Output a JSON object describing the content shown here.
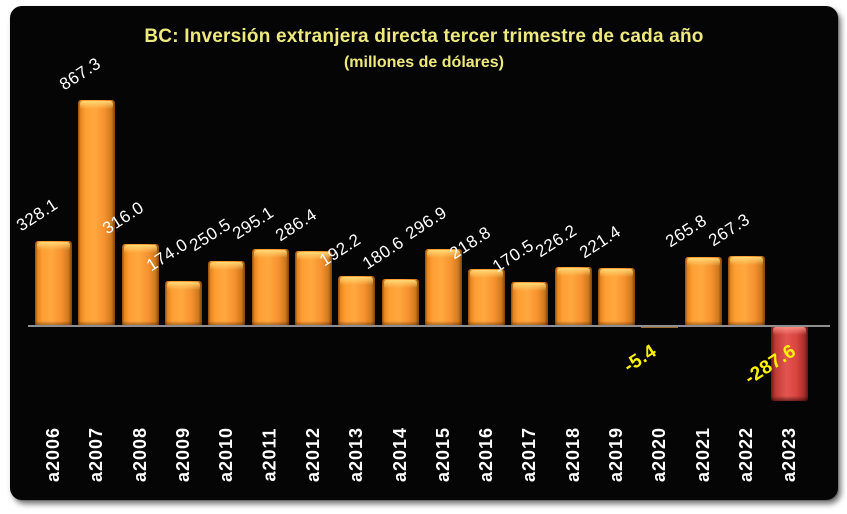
{
  "theme": {
    "page_bg": "#FFFFFF",
    "panel_bg": "#050505",
    "title_color": "#EEE97D",
    "value_label_color": "#FFFFFF",
    "negative_label_color": "#FFF100",
    "axis_line_color": "#8F8F8F",
    "orange_bar": "#F6912F",
    "red_bar": "#D8423F"
  },
  "chart_data": {
    "type": "bar",
    "title": "BC: Inversión extranjera directa tercer trimestre de cada año",
    "subtitle": "(millones de dólares)",
    "xlabel": "",
    "ylabel": "",
    "categories": [
      "a2006",
      "a2007",
      "a2008",
      "a2009",
      "a2010",
      "a2011",
      "a2012",
      "a2013",
      "a2014",
      "a2015",
      "a2016",
      "a2017",
      "a2018",
      "a2019",
      "a2020",
      "a2021",
      "a2022",
      "a2023"
    ],
    "values": [
      328.1,
      867.3,
      316.0,
      174.0,
      250.5,
      295.1,
      286.4,
      192.2,
      180.6,
      296.9,
      218.8,
      170.5,
      226.2,
      221.4,
      -5.4,
      265.8,
      267.3,
      -287.6
    ],
    "bar_colors": [
      "orange",
      "orange",
      "orange",
      "orange",
      "orange",
      "orange",
      "orange",
      "orange",
      "orange",
      "orange",
      "orange",
      "orange",
      "orange",
      "orange",
      "orange",
      "orange",
      "orange",
      "red"
    ],
    "value_label_format": "one-decimal",
    "ylim": [
      -300,
      900
    ],
    "grid": false,
    "legend": "none"
  }
}
